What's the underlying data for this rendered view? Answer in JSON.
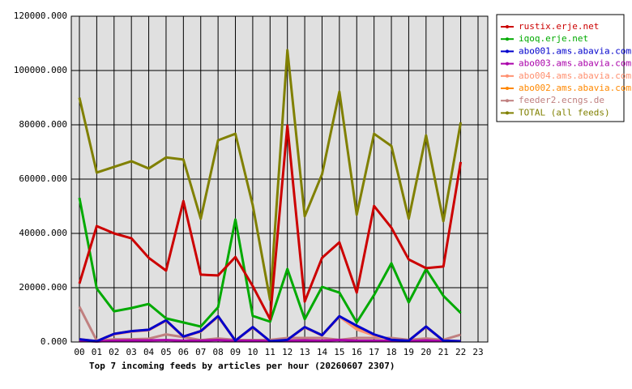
{
  "chart_data": {
    "type": "line",
    "title": "Top 7 incoming feeds by articles per hour (20260607 2307)",
    "categories": [
      "00",
      "01",
      "02",
      "03",
      "04",
      "05",
      "06",
      "07",
      "08",
      "09",
      "10",
      "11",
      "12",
      "13",
      "14",
      "15",
      "16",
      "17",
      "18",
      "19",
      "20",
      "21",
      "22",
      "23"
    ],
    "ylim": [
      0,
      120000
    ],
    "yticks": [
      {
        "value": 0,
        "label": "0.000"
      },
      {
        "value": 20000,
        "label": "20000.000"
      },
      {
        "value": 40000,
        "label": "40000.000"
      },
      {
        "value": 60000,
        "label": "60000.000"
      },
      {
        "value": 80000,
        "label": "80000.000"
      },
      {
        "value": 100000,
        "label": "100000.000"
      },
      {
        "value": 120000,
        "label": "120000.000"
      }
    ],
    "grid": true,
    "legend": "right",
    "series": [
      {
        "name": "rustix.erje.net",
        "color": "#cc0000",
        "values": [
          21500,
          42700,
          40000,
          38200,
          31000,
          26300,
          51900,
          24800,
          24500,
          31300,
          20600,
          8400,
          79700,
          14900,
          31000,
          36700,
          18200,
          50100,
          42100,
          30400,
          27200,
          27800,
          66300,
          null
        ]
      },
      {
        "name": "iqoq.erje.net",
        "color": "#00aa00",
        "values": [
          53100,
          19700,
          11300,
          12500,
          14000,
          8700,
          7200,
          5700,
          12800,
          45100,
          9600,
          7500,
          26900,
          8400,
          20300,
          18200,
          7200,
          17300,
          29000,
          14600,
          26900,
          17000,
          10700,
          null
        ]
      },
      {
        "name": "abo001.ams.abavia.com",
        "color": "#0000cc",
        "values": [
          1000,
          300,
          3000,
          4000,
          4500,
          8000,
          2000,
          4000,
          9500,
          500,
          5500,
          300,
          800,
          5500,
          2500,
          9500,
          6000,
          2800,
          800,
          500,
          5700,
          500,
          300,
          null
        ]
      },
      {
        "name": "abo003.ams.abavia.com",
        "color": "#aa00aa",
        "values": [
          500,
          200,
          500,
          600,
          600,
          700,
          500,
          500,
          700,
          400,
          500,
          300,
          500,
          600,
          500,
          700,
          500,
          500,
          400,
          300,
          600,
          300,
          300,
          null
        ]
      },
      {
        "name": "abo004.ams.abavia.com",
        "color": "#ff9070",
        "values": [
          900,
          300,
          2800,
          3800,
          4300,
          7800,
          1900,
          3800,
          9300,
          500,
          5300,
          300,
          800,
          5300,
          2400,
          9300,
          4600,
          2400,
          800,
          500,
          5500,
          500,
          300,
          null
        ]
      },
      {
        "name": "abo002.ams.abavia.com",
        "color": "#ff8800",
        "values": [
          1000,
          300,
          3000,
          4000,
          4500,
          8000,
          2000,
          4000,
          9500,
          500,
          5500,
          300,
          800,
          5500,
          2500,
          9500,
          5000,
          2500,
          800,
          500,
          5700,
          500,
          300,
          null
        ]
      },
      {
        "name": "feeder2.ecngs.de",
        "color": "#c08080",
        "values": [
          13000,
          500,
          1000,
          1000,
          1200,
          2800,
          1800,
          700,
          1300,
          800,
          700,
          800,
          1500,
          1500,
          1500,
          800,
          1500,
          1500,
          1500,
          800,
          1300,
          800,
          2700,
          null
        ]
      },
      {
        "name": "TOTAL (all feeds)",
        "color": "#808000",
        "values": [
          90000,
          62400,
          64500,
          66600,
          63900,
          68000,
          67200,
          45400,
          74300,
          76700,
          50400,
          15500,
          107500,
          46300,
          61800,
          92200,
          46900,
          76700,
          72200,
          45400,
          76100,
          44500,
          80900,
          null
        ]
      }
    ]
  }
}
